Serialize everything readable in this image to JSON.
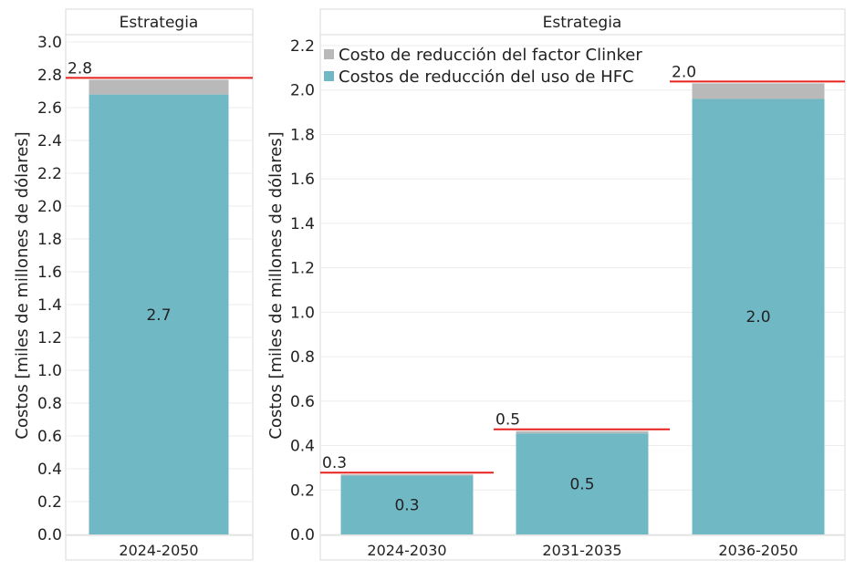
{
  "colors": {
    "hfc": "#71b8c5",
    "clinker": "#b9b9b9",
    "total_line": "#e8211f"
  },
  "legend": [
    {
      "name": "Costo de reducción del factor Clinker",
      "color": "#b9b9b9"
    },
    {
      "name": "Costos de reducción del uso de HFC",
      "color": "#71b8c5"
    }
  ],
  "chart_data": [
    {
      "type": "bar",
      "stacked": true,
      "header": "Estrategia",
      "ylabel": "Costos [miles de millones de dólares]",
      "ylim": [
        0,
        3.0
      ],
      "yticks": [
        "0.0",
        "0.2",
        "0.4",
        "0.6",
        "0.8",
        "1.0",
        "1.2",
        "1.4",
        "1.6",
        "1.8",
        "2.0",
        "2.2",
        "2.4",
        "2.6",
        "2.8",
        "3.0"
      ],
      "categories": [
        "2024-2050"
      ],
      "series": [
        {
          "name": "Costos de reducción del uso de HFC",
          "values": [
            2.68
          ],
          "labels": [
            "2.7"
          ]
        },
        {
          "name": "Costo de reducción del factor Clinker",
          "values": [
            0.09
          ]
        }
      ],
      "totals": [
        2.77
      ],
      "total_labels": [
        "2.8"
      ],
      "legend_position": "none"
    },
    {
      "type": "bar",
      "stacked": true,
      "header": "Estrategia",
      "ylabel": "Costos [miles de millones de dólares]",
      "ylim": [
        0,
        2.2
      ],
      "yticks": [
        "0.0",
        "0.2",
        "0.4",
        "0.6",
        "0.8",
        "1.0",
        "1.2",
        "1.4",
        "1.6",
        "1.8",
        "2.0",
        "2.2"
      ],
      "categories": [
        "2024-2030",
        "2031-2035",
        "2036-2050"
      ],
      "series": [
        {
          "name": "Costos de reducción del uso de HFC",
          "values": [
            0.265,
            0.455,
            1.96
          ],
          "labels": [
            "0.3",
            "0.5",
            "2.0"
          ]
        },
        {
          "name": "Costo de reducción del factor Clinker",
          "values": [
            0.005,
            0.01,
            0.07
          ]
        }
      ],
      "totals": [
        0.27,
        0.465,
        2.03
      ],
      "total_labels": [
        "0.3",
        "0.5",
        "2.0"
      ],
      "legend_position": "top-left"
    }
  ]
}
